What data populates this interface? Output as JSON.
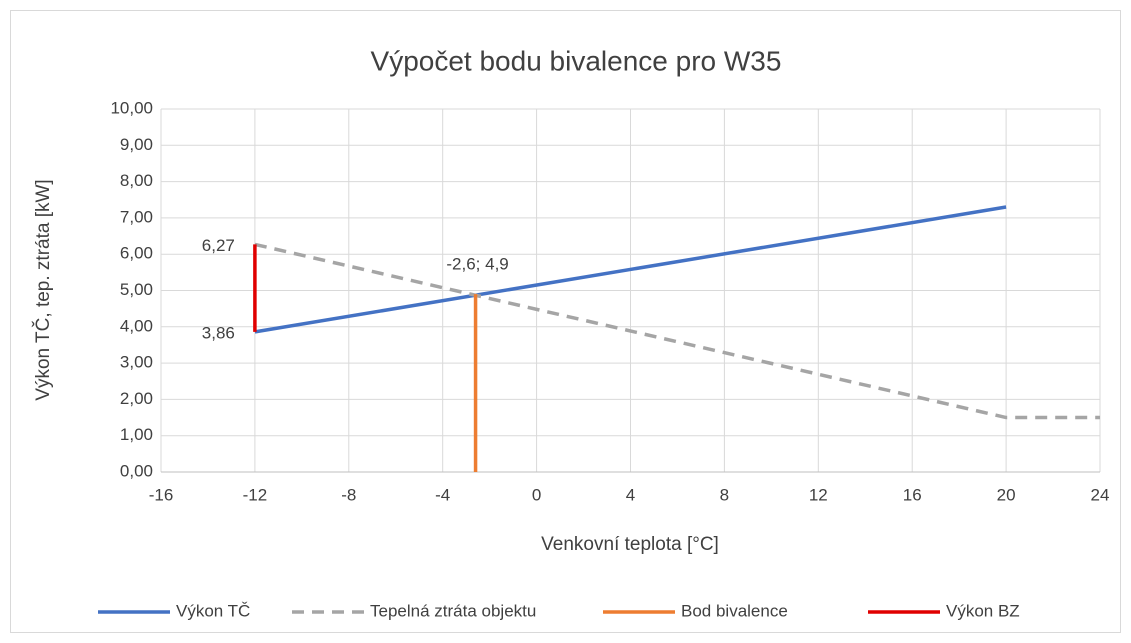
{
  "chart_data": {
    "type": "line",
    "title": "Výpočet bodu bivalence pro W35",
    "x_label": "Venkovní teplota [°C]",
    "y_label": "Výkon TČ, tep. ztráta [kW]",
    "xlim": [
      -16,
      24
    ],
    "xticks": [
      -16,
      -12,
      -8,
      -4,
      0,
      4,
      8,
      12,
      16,
      20,
      24
    ],
    "ylim": [
      0,
      10
    ],
    "yticks": [
      {
        "value": 0,
        "label": "0,00"
      },
      {
        "value": 1,
        "label": "1,00"
      },
      {
        "value": 2,
        "label": "2,00"
      },
      {
        "value": 3,
        "label": "3,00"
      },
      {
        "value": 4,
        "label": "4,00"
      },
      {
        "value": 5,
        "label": "5,00"
      },
      {
        "value": 6,
        "label": "6,00"
      },
      {
        "value": 7,
        "label": "7,00"
      },
      {
        "value": 8,
        "label": "8,00"
      },
      {
        "value": 9,
        "label": "9,00"
      },
      {
        "value": 10,
        "label": "10,00"
      }
    ],
    "grid": true,
    "legend": "bottom",
    "series": [
      {
        "name": "Výkon TČ",
        "color": "#4472c4",
        "x": [
          -12,
          20
        ],
        "values": [
          3.86,
          7.3
        ]
      },
      {
        "name": "Tepelná ztráta objektu",
        "color": "#a5a5a5",
        "dashed": true,
        "x": [
          -12,
          20,
          24
        ],
        "values": [
          6.27,
          1.5,
          1.5
        ]
      },
      {
        "name": "Bod bivalence",
        "color": "#ed7d31",
        "x": [
          -2.6,
          -2.6
        ],
        "values": [
          0,
          4.9
        ],
        "value_labels": [
          null,
          "-2,6; 4,9"
        ]
      },
      {
        "name": "Výkon BZ",
        "color": "#e00000",
        "x": [
          -12,
          -12
        ],
        "values": [
          3.86,
          6.27
        ],
        "value_labels": [
          "3,86",
          "6,27"
        ]
      }
    ]
  }
}
